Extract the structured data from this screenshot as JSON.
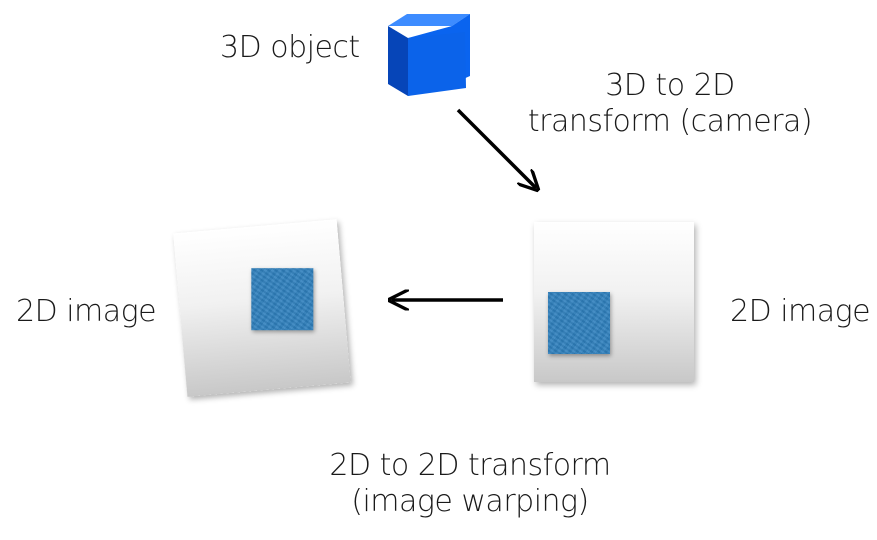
{
  "labels": {
    "object": "3D object",
    "camera_line1": "3D to 2D",
    "camera_line2": "transform (camera)",
    "image_left": "2D image",
    "image_right": "2D image",
    "warp_line1": "2D to 2D transform",
    "warp_line2": "(image warping)"
  },
  "colors": {
    "cube_front": "#0a64ef",
    "cube_top": "#3d8cff",
    "cube_side": "#0645b8",
    "texture_square": "#2f80bd",
    "arrow": "#000000"
  },
  "icons": {
    "object": "cube-icon",
    "arrows": [
      "arrow-down-right",
      "arrow-left"
    ]
  }
}
